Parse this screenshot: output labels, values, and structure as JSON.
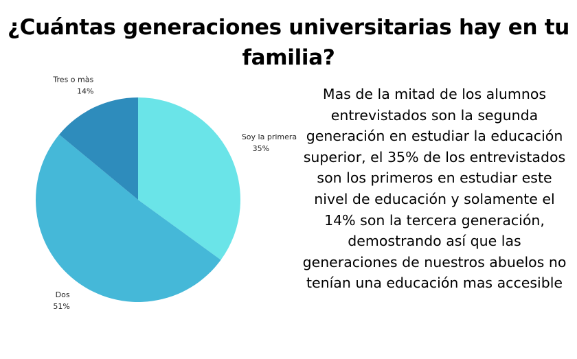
{
  "title": "¿Cuántas generaciones universitarias hay en tu familia?",
  "chart_data": {
    "type": "pie",
    "title": "¿Cuántas generaciones universitarias hay en tu familia?",
    "slices": [
      {
        "label": "Soy la primera",
        "value": 35,
        "value_label": "35%",
        "color": "#6ae4e8"
      },
      {
        "label": "Dos",
        "value": 51,
        "value_label": "51%",
        "color": "#45b8d8"
      },
      {
        "label": "Tres o màs",
        "value": 14,
        "value_label": "14%",
        "color": "#2e8cbc"
      }
    ],
    "start_angle_deg": 0,
    "direction": "clockwise",
    "legend": "none",
    "labels": "outside"
  },
  "description": "Mas de la mitad de los alumnos entrevistados son la segunda generación en estudiar la educación superior, el 35% de los entrevistados son los primeros en estudiar este nivel de educación y solamente el 14% son la tercera generación, demostrando así que las generaciones de nuestros abuelos no tenían una educación mas accesible"
}
